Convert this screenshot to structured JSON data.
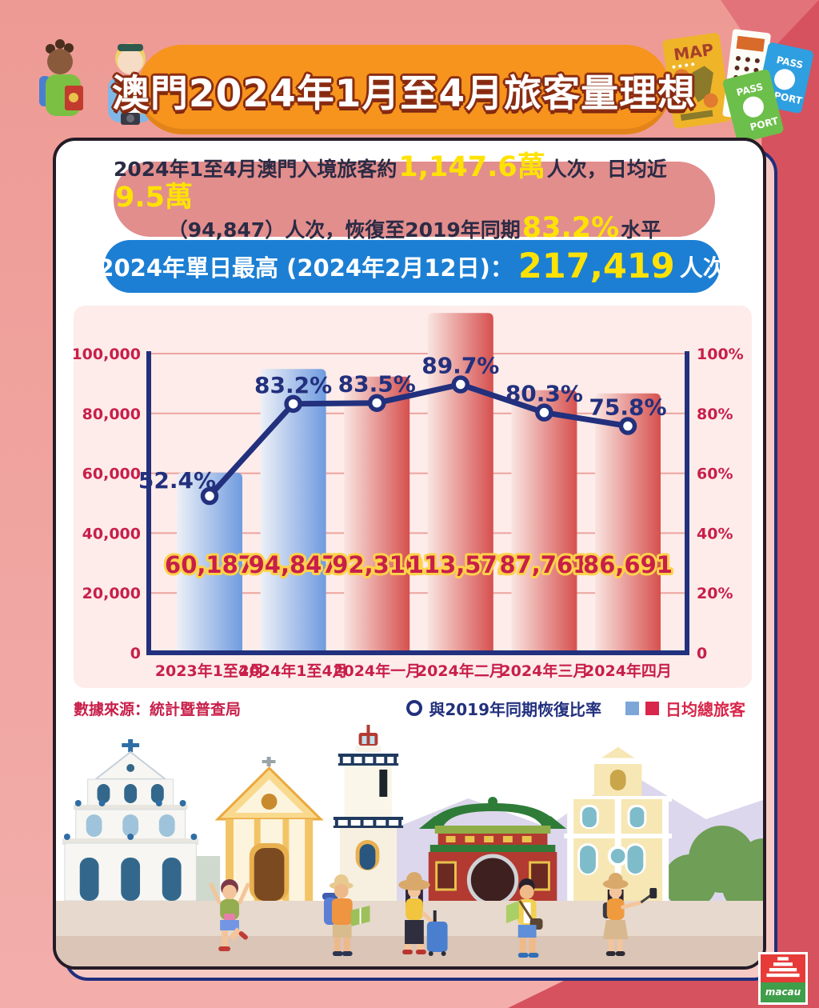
{
  "header": {
    "title": "澳門2024年1月至4月旅客量理想"
  },
  "decor": {
    "map_label": "MAP",
    "passport_top": "PASS",
    "passport_bottom": "PORT"
  },
  "summary_box": {
    "l1a": "2024年1至4月澳門入境旅客約",
    "l1b": "1,147.6萬",
    "l1c": "人次，日均近",
    "l1d": "9.5萬",
    "l2a": "（94,847）人次，恢復至2019年同期",
    "l2b": "83.2%",
    "l2c": "水平"
  },
  "peak_box": {
    "a": "2024年單日最高 (2024年2月12日)：",
    "b": "217,419",
    "c": "人次"
  },
  "chart_data": {
    "type": "bar+line",
    "categories": [
      "2023年1至4月",
      "2024年1至4月",
      "2024年一月",
      "2024年二月",
      "2024年三月",
      "2024年四月"
    ],
    "series": [
      {
        "name": "日均總旅客",
        "type": "bar",
        "axis": "left",
        "values": [
          60187,
          94847,
          92310,
          113571,
          87761,
          86691
        ],
        "value_labels": [
          "60,187",
          "94,847",
          "92,310",
          "113,571",
          "87,761",
          "86,691"
        ],
        "colors": [
          "blue",
          "blue",
          "red",
          "red",
          "red",
          "red"
        ]
      },
      {
        "name": "與2019年同期恢復比率",
        "type": "line",
        "axis": "right",
        "values": [
          52.4,
          83.2,
          83.5,
          89.7,
          80.3,
          75.8
        ],
        "labels": [
          "52.4%",
          "83.2%",
          "83.5%",
          "89.7%",
          "80.3%",
          "75.8%"
        ]
      }
    ],
    "left_axis": {
      "max": 100000,
      "ticks": [
        "0",
        "20,000",
        "40,000",
        "60,000",
        "80,000",
        "100,000"
      ]
    },
    "right_axis": {
      "max": 100,
      "ticks": [
        "0",
        "20%",
        "40%",
        "60%",
        "80%",
        "100%"
      ]
    },
    "grid": true,
    "legend_position": "bottom-right",
    "colors": {
      "axis": "#22307d",
      "line": "#22307d",
      "tick_label": "#c81f4a",
      "grid": "#eca49f",
      "bar_blue_from": "#edf0f7",
      "bar_blue_to": "#6f9bdf",
      "bar_red_from": "#f9e5e1",
      "bar_red_to": "#d6504e",
      "value_label": "#c81f4a",
      "value_label_outline": "#ffd24a",
      "legend_blue": "#7ca6d8",
      "legend_red": "#d8274a"
    }
  },
  "footer": {
    "source": "數據來源：統計暨普查局",
    "legend_line": "與2019年同期恢復比率",
    "legend_bars": "日均總旅客"
  },
  "logo": {
    "text": "macau"
  }
}
